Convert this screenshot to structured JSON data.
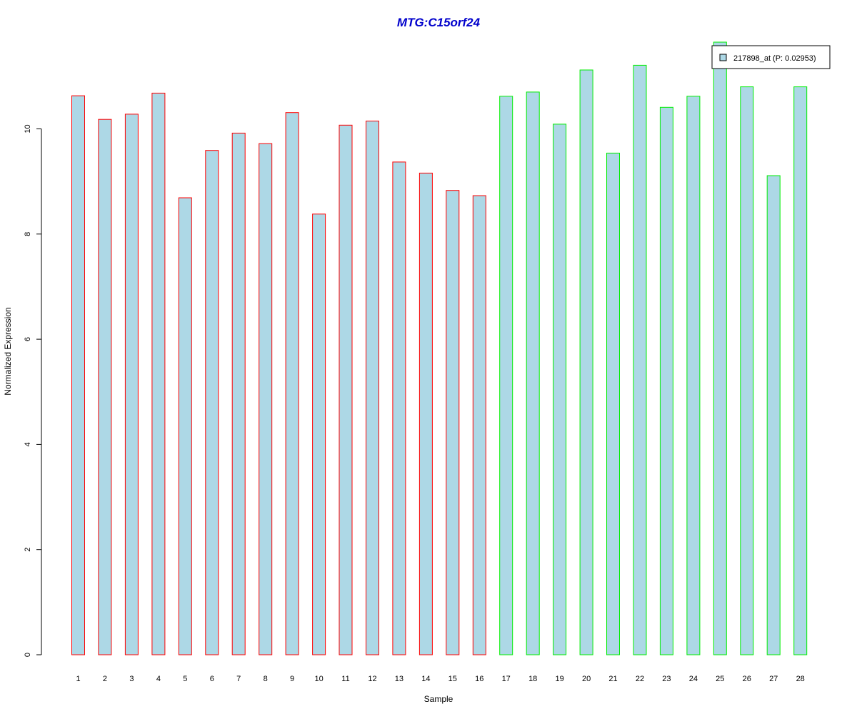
{
  "colors": {
    "title": "#0000cc",
    "bar_fill": "#add8e6",
    "group1_border": "#ff0000",
    "group2_border": "#00ee00",
    "axis": "#000000"
  },
  "chart_data": {
    "type": "bar",
    "title": "MTG:C15orf24",
    "xlabel": "Sample",
    "ylabel": "Normalized Expression",
    "ylim": [
      0,
      11.6
    ],
    "yticks": [
      0,
      2,
      4,
      6,
      8,
      10
    ],
    "grid": false,
    "legend_position": "top-right",
    "categories": [
      "1",
      "2",
      "3",
      "4",
      "5",
      "6",
      "7",
      "8",
      "9",
      "10",
      "11",
      "12",
      "13",
      "14",
      "15",
      "16",
      "17",
      "18",
      "19",
      "20",
      "21",
      "22",
      "23",
      "24",
      "25",
      "26",
      "27",
      "28"
    ],
    "series": [
      {
        "name": "217898_at (P: 0.02953)",
        "values": [
          10.63,
          10.18,
          10.28,
          10.68,
          8.69,
          9.59,
          9.92,
          9.72,
          10.31,
          8.38,
          10.07,
          10.15,
          9.37,
          9.16,
          8.83,
          8.73,
          10.62,
          10.7,
          10.09,
          11.12,
          9.54,
          11.21,
          10.41,
          10.62,
          11.65,
          10.8,
          9.11,
          10.8
        ],
        "group": [
          1,
          1,
          1,
          1,
          1,
          1,
          1,
          1,
          1,
          1,
          1,
          1,
          1,
          1,
          1,
          1,
          2,
          2,
          2,
          2,
          2,
          2,
          2,
          2,
          2,
          2,
          2,
          2
        ]
      }
    ],
    "legend": [
      "217898_at (P: 0.02953)"
    ]
  }
}
